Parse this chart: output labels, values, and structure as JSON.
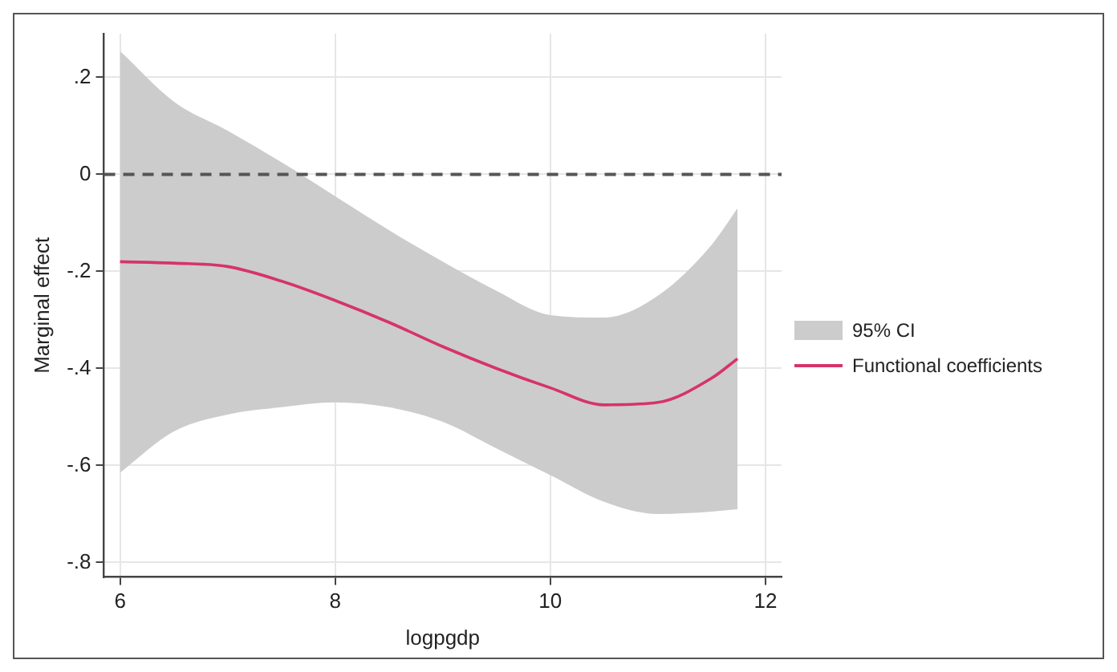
{
  "chart_data": {
    "type": "line",
    "xlabel": "logpgdp",
    "ylabel": "Marginal effect",
    "xlim": [
      5.85,
      12.15
    ],
    "ylim": [
      -0.83,
      0.29
    ],
    "xticks": [
      6,
      8,
      10,
      12
    ],
    "yticks": [
      {
        "value": 0.2,
        "label": ".2"
      },
      {
        "value": 0,
        "label": "0"
      },
      {
        "value": -0.2,
        "label": "-.2"
      },
      {
        "value": -0.4,
        "label": "-.4"
      },
      {
        "value": -0.6,
        "label": "-.6"
      },
      {
        "value": -0.8,
        "label": "-.8"
      }
    ],
    "x": [
      6,
      6.5,
      7,
      7.5,
      8,
      8.5,
      9,
      9.5,
      10,
      10.5,
      11,
      11.5,
      11.74
    ],
    "series": [
      {
        "name": "Functional coefficients",
        "color": "#d6336c",
        "values": [
          -0.18,
          -0.183,
          -0.19,
          -0.22,
          -0.26,
          -0.305,
          -0.355,
          -0.4,
          -0.44,
          -0.475,
          -0.47,
          -0.42,
          -0.38
        ],
        "lower": [
          -0.615,
          -0.53,
          -0.495,
          -0.48,
          -0.47,
          -0.48,
          -0.51,
          -0.565,
          -0.62,
          -0.675,
          -0.7,
          -0.695,
          -0.69
        ],
        "upper": [
          0.254,
          0.15,
          0.09,
          0.025,
          -0.045,
          -0.115,
          -0.18,
          -0.24,
          -0.29,
          -0.295,
          -0.25,
          -0.145,
          -0.07
        ]
      }
    ],
    "annotations": [
      "95% CI"
    ],
    "ref_lines": [
      {
        "axis": "y",
        "value": 0,
        "color": "#555555",
        "line_style": "dashed"
      }
    ],
    "grid": true,
    "legend": "right",
    "marker": "none",
    "line_style": "solid"
  }
}
